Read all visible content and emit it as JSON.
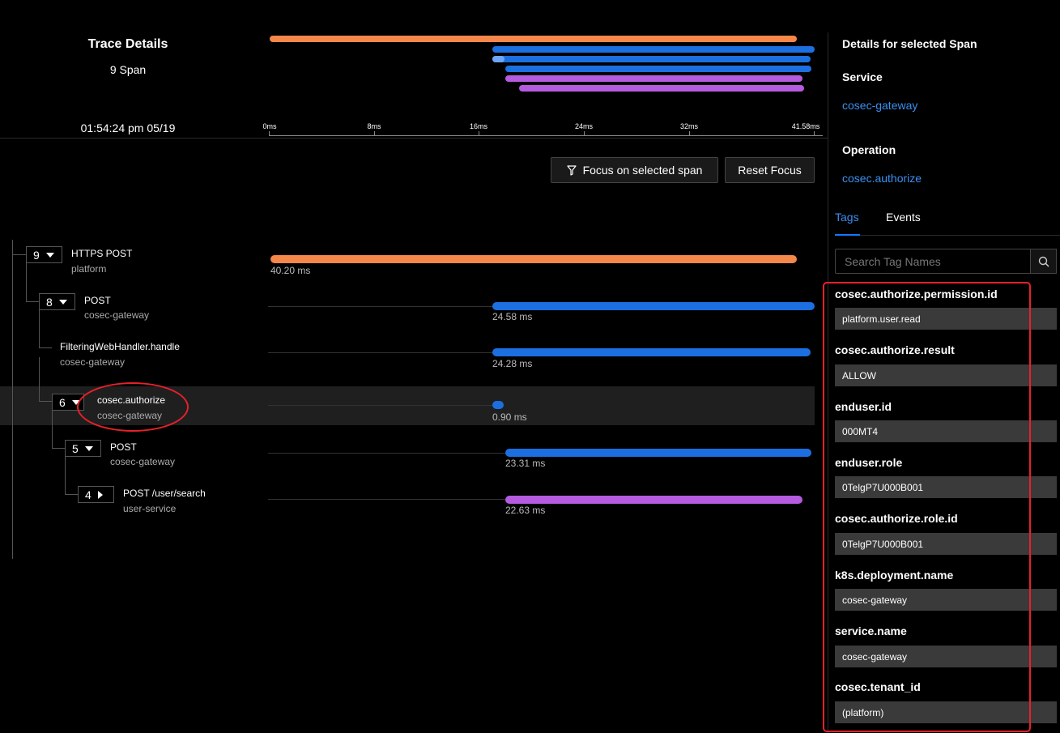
{
  "header": {
    "title": "Trace Details",
    "span_count": "9 Span",
    "timestamp": "01:54:24 pm 05/19"
  },
  "axis": {
    "ticks": [
      "0ms",
      "8ms",
      "16ms",
      "24ms",
      "32ms",
      "41.58ms"
    ]
  },
  "minimap_colors": [
    "#f5874a",
    "#1c6fe0",
    "#1c6fe0",
    "#1c6fe0",
    "#b55be0",
    "#b55be0"
  ],
  "actions": {
    "focus_label": "Focus on selected span",
    "reset_label": "Reset Focus"
  },
  "spans": [
    {
      "count": "9",
      "name": "HTTPS POST",
      "service": "platform",
      "duration": "40.20 ms",
      "color": "#f5874a",
      "expand": "down"
    },
    {
      "count": "8",
      "name": "POST",
      "service": "cosec-gateway",
      "duration": "24.58 ms",
      "color": "#1c6fe0",
      "expand": "down"
    },
    {
      "count": "",
      "name": "FilteringWebHandler.handle",
      "service": "cosec-gateway",
      "duration": "24.28 ms",
      "color": "#1c6fe0",
      "expand": "none"
    },
    {
      "count": "6",
      "name": "cosec.authorize",
      "service": "cosec-gateway",
      "duration": "0.90 ms",
      "color": "#1c6fe0",
      "expand": "down",
      "selected": true
    },
    {
      "count": "5",
      "name": "POST",
      "service": "cosec-gateway",
      "duration": "23.31 ms",
      "color": "#1c6fe0",
      "expand": "down"
    },
    {
      "count": "4",
      "name": "POST /user/search",
      "service": "user-service",
      "duration": "22.63 ms",
      "color": "#b55be0",
      "expand": "right"
    }
  ],
  "details": {
    "heading": "Details for selected Span",
    "service_label": "Service",
    "service_value": "cosec-gateway",
    "operation_label": "Operation",
    "operation_value": "cosec.authorize",
    "tabs": [
      "Tags",
      "Events"
    ],
    "search_placeholder": "Search Tag Names",
    "tags": [
      {
        "name": "cosec.authorize.permission.id",
        "value": "platform.user.read"
      },
      {
        "name": "cosec.authorize.result",
        "value": "ALLOW"
      },
      {
        "name": "enduser.id",
        "value": "000MT4"
      },
      {
        "name": "enduser.role",
        "value": "0TelgP7U000B001"
      },
      {
        "name": "cosec.authorize.role.id",
        "value": "0TelgP7U000B001"
      },
      {
        "name": "k8s.deployment.name",
        "value": "cosec-gateway"
      },
      {
        "name": "service.name",
        "value": "cosec-gateway"
      },
      {
        "name": "cosec.tenant_id",
        "value": "(platform)"
      }
    ]
  },
  "annotation_color": "#e8202a"
}
